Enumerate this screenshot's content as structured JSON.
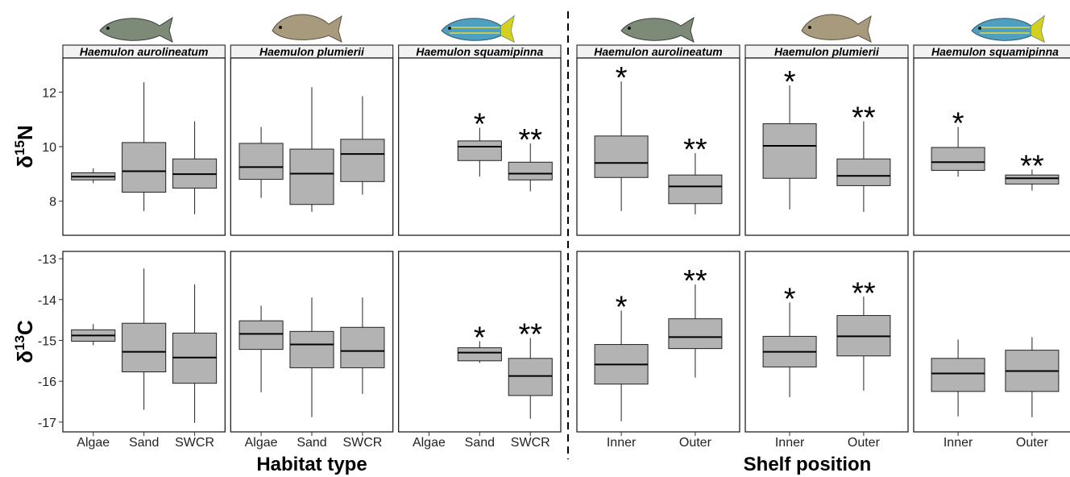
{
  "chart_data": [
    {
      "type": "box",
      "x_label": "Habitat type",
      "categories": [
        "Algae",
        "Sand",
        "SWCR"
      ],
      "facets": [
        "Haemulon aurolineatum",
        "Haemulon plumierii",
        "Haemulon squamipinna"
      ],
      "rows": [
        {
          "y_label": {
            "symbol": "δ",
            "superscript": "15",
            "element": "N"
          },
          "ylim": [
            6.75,
            13.25
          ],
          "yticks": [
            8,
            10,
            12
          ],
          "panels": [
            [
              {
                "min": 8.66,
                "q1": 8.78,
                "median": 8.9,
                "q3": 9.04,
                "max": 9.2
              },
              {
                "min": 7.64,
                "q1": 8.33,
                "median": 9.1,
                "q3": 10.15,
                "max": 12.36
              },
              {
                "min": 7.52,
                "q1": 8.48,
                "median": 8.99,
                "q3": 9.55,
                "max": 10.93
              }
            ],
            [
              {
                "min": 8.12,
                "q1": 8.8,
                "median": 9.25,
                "q3": 10.12,
                "max": 10.72
              },
              {
                "min": 7.61,
                "q1": 7.88,
                "median": 9.01,
                "q3": 9.91,
                "max": 12.18
              },
              {
                "min": 8.24,
                "q1": 8.72,
                "median": 9.73,
                "q3": 10.27,
                "max": 11.85
              }
            ],
            [
              null,
              {
                "min": 8.9,
                "q1": 9.49,
                "median": 10.0,
                "q3": 10.21,
                "max": 10.69,
                "annotation": "*"
              },
              {
                "min": 8.36,
                "q1": 8.78,
                "median": 9.01,
                "q3": 9.43,
                "max": 10.12,
                "annotation": "**"
              }
            ]
          ]
        },
        {
          "y_label": {
            "symbol": "δ",
            "superscript": "13",
            "element": "C"
          },
          "ylim": [
            -17.24,
            -12.82
          ],
          "yticks": [
            -17,
            -16,
            -15,
            -14,
            -13
          ],
          "panels": [
            [
              {
                "min": -15.12,
                "q1": -15.02,
                "median": -14.88,
                "q3": -14.74,
                "max": -14.6
              },
              {
                "min": -16.7,
                "q1": -15.77,
                "median": -15.28,
                "q3": -14.58,
                "max": -13.24
              },
              {
                "min": -17.02,
                "q1": -16.05,
                "median": -15.42,
                "q3": -14.82,
                "max": -13.63
              }
            ],
            [
              {
                "min": -16.27,
                "q1": -15.22,
                "median": -14.84,
                "q3": -14.52,
                "max": -14.15
              },
              {
                "min": -16.88,
                "q1": -15.67,
                "median": -15.1,
                "q3": -14.78,
                "max": -13.95
              },
              {
                "min": -16.31,
                "q1": -15.67,
                "median": -15.26,
                "q3": -14.68,
                "max": -13.95
              }
            ],
            [
              null,
              {
                "min": -15.55,
                "q1": -15.5,
                "median": -15.3,
                "q3": -15.18,
                "max": -15.02,
                "annotation": "*"
              },
              {
                "min": -16.92,
                "q1": -16.35,
                "median": -15.87,
                "q3": -15.44,
                "max": -14.94,
                "annotation": "**"
              }
            ]
          ]
        }
      ]
    },
    {
      "type": "box",
      "x_label": "Shelf position",
      "categories": [
        "Inner",
        "Outer"
      ],
      "facets": [
        "Haemulon aurolineatum",
        "Haemulon plumierii",
        "Haemulon squamipinna"
      ],
      "rows": [
        {
          "ylim": [
            6.75,
            13.25
          ],
          "panels": [
            [
              {
                "min": 7.64,
                "q1": 8.87,
                "median": 9.4,
                "q3": 10.39,
                "max": 12.39,
                "annotation": "*"
              },
              {
                "min": 7.52,
                "q1": 7.91,
                "median": 8.54,
                "q3": 8.96,
                "max": 9.76,
                "annotation": "**"
              }
            ],
            [
              {
                "min": 7.7,
                "q1": 8.84,
                "median": 10.03,
                "q3": 10.84,
                "max": 12.24,
                "annotation": "*"
              },
              {
                "min": 7.61,
                "q1": 8.57,
                "median": 8.93,
                "q3": 9.55,
                "max": 10.93,
                "annotation": "**"
              }
            ],
            [
              {
                "min": 8.9,
                "q1": 9.13,
                "median": 9.43,
                "q3": 9.97,
                "max": 10.72,
                "annotation": "*"
              },
              {
                "min": 8.39,
                "q1": 8.63,
                "median": 8.84,
                "q3": 8.96,
                "max": 9.16,
                "annotation": "**"
              }
            ]
          ]
        },
        {
          "ylim": [
            -17.24,
            -12.82
          ],
          "panels": [
            [
              {
                "min": -16.98,
                "q1": -16.07,
                "median": -15.59,
                "q3": -15.1,
                "max": -14.27,
                "annotation": "*"
              },
              {
                "min": -15.91,
                "q1": -15.2,
                "median": -14.92,
                "q3": -14.47,
                "max": -13.63,
                "annotation": "**"
              }
            ],
            [
              {
                "min": -16.39,
                "q1": -15.65,
                "median": -15.28,
                "q3": -14.9,
                "max": -14.07,
                "annotation": "*"
              },
              {
                "min": -16.23,
                "q1": -15.38,
                "median": -14.9,
                "q3": -14.39,
                "max": -13.93,
                "annotation": "**"
              }
            ],
            [
              {
                "min": -16.86,
                "q1": -16.25,
                "median": -15.81,
                "q3": -15.44,
                "max": -14.98
              },
              {
                "min": -16.88,
                "q1": -16.25,
                "median": -15.75,
                "q3": -15.24,
                "max": -14.92
              }
            ]
          ]
        }
      ]
    }
  ]
}
